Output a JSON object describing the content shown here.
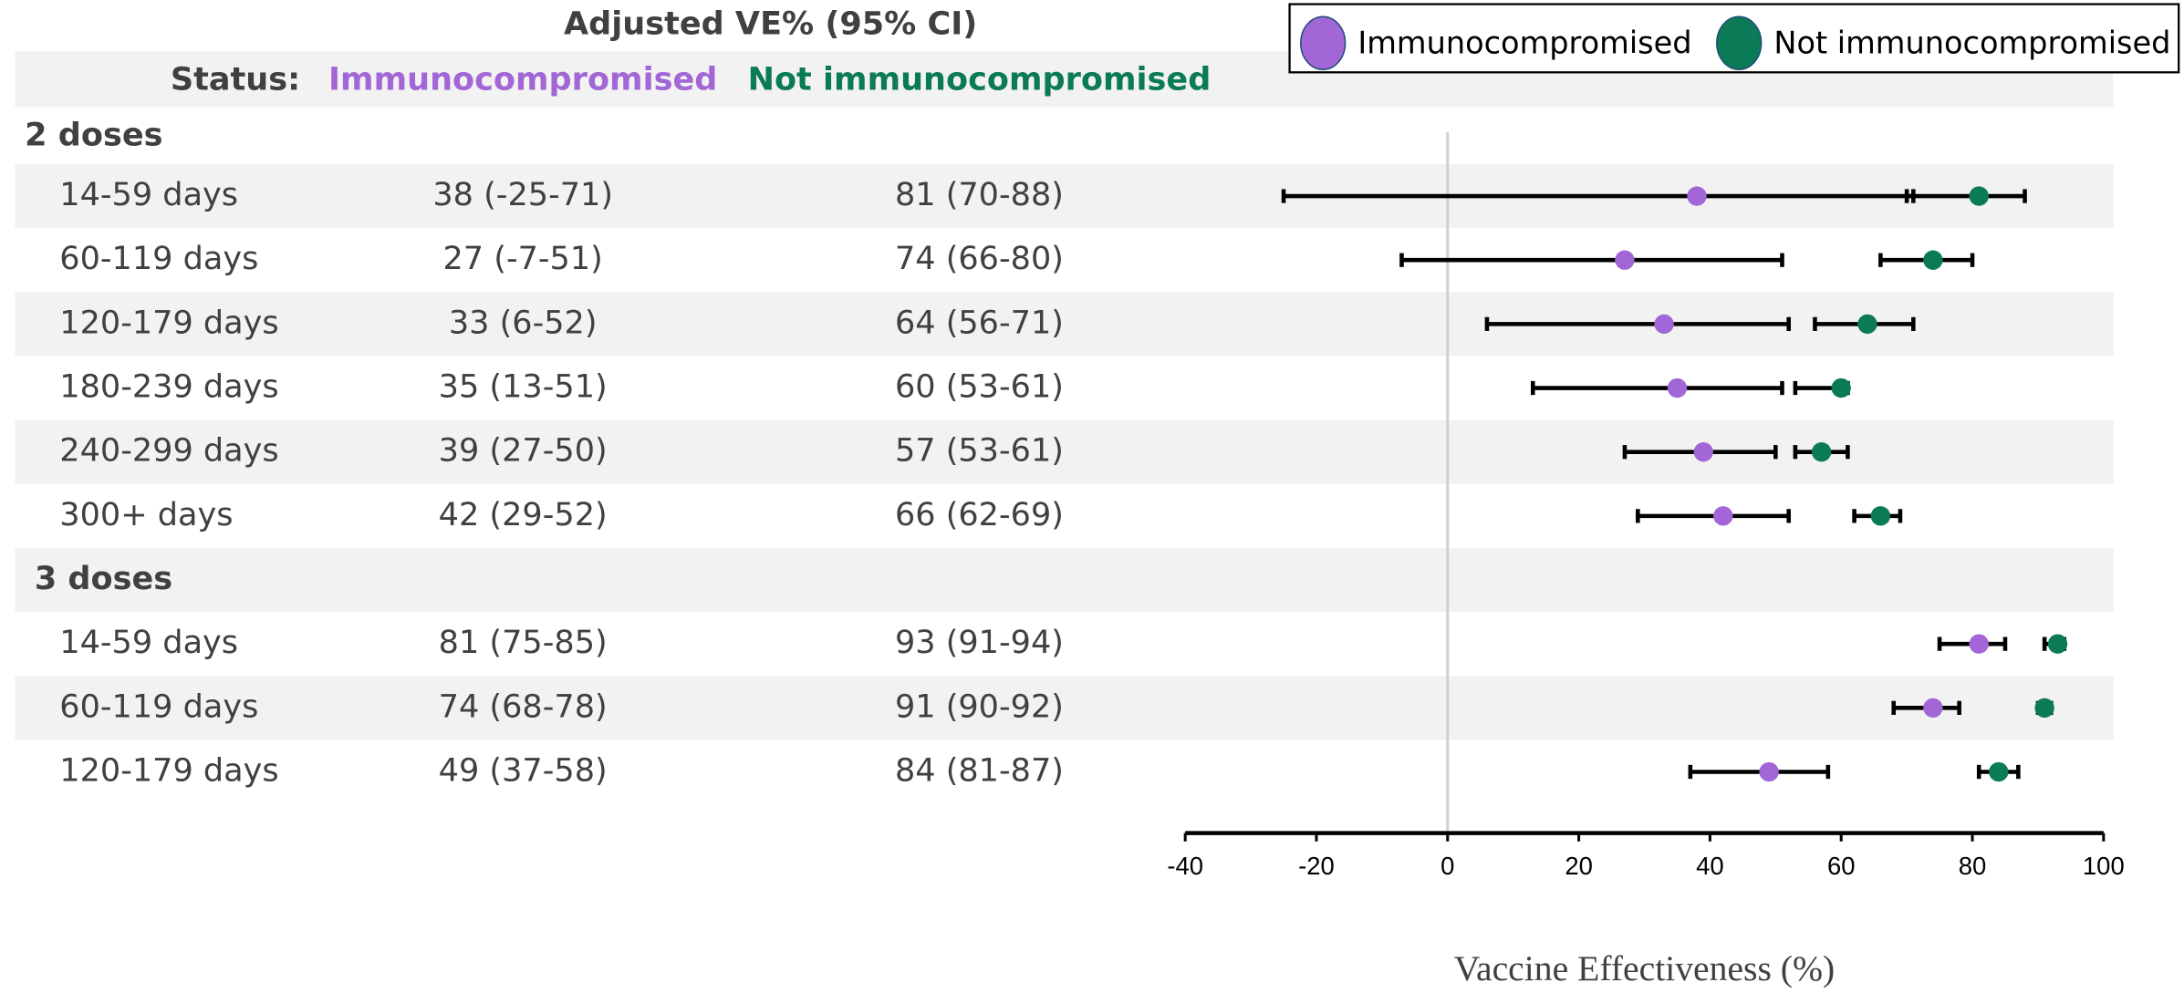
{
  "chart_data": {
    "type": "forest",
    "title": "Adjusted VE% (95% CI)",
    "status_label": "Status:",
    "groups": [
      {
        "name": "2 doses",
        "categories": [
          "14-59 days",
          "60-119 days",
          "120-179 days",
          "180-239 days",
          "240-299 days",
          "300+ days"
        ]
      },
      {
        "name": "3 doses",
        "categories": [
          "14-59 days",
          "60-119 days",
          "120-179 days"
        ]
      }
    ],
    "series": [
      {
        "name": "Immunocompromised",
        "color": "#a366d6",
        "values": [
          38,
          27,
          33,
          35,
          39,
          42,
          81,
          74,
          49
        ],
        "lower": [
          -25,
          -7,
          6,
          13,
          27,
          29,
          75,
          68,
          37
        ],
        "upper": [
          71,
          51,
          52,
          51,
          50,
          52,
          85,
          78,
          58
        ],
        "value_labels": [
          "38 (-25-71)",
          "27 (-7-51)",
          "33 (6-52)",
          "35 (13-51)",
          "39 (27-50)",
          "42 (29-52)",
          "81 (75-85)",
          "74 (68-78)",
          "49 (37-58)"
        ]
      },
      {
        "name": "Not immunocompromised",
        "color": "#0b7a56",
        "values": [
          81,
          74,
          64,
          60,
          57,
          66,
          93,
          91,
          84
        ],
        "lower": [
          70,
          66,
          56,
          53,
          53,
          62,
          91,
          90,
          81
        ],
        "upper": [
          88,
          80,
          71,
          61,
          61,
          69,
          94,
          92,
          87
        ],
        "value_labels": [
          "81 (70-88)",
          "74 (66-80)",
          "64 (56-71)",
          "60 (53-61)",
          "57 (53-61)",
          "66 (62-69)",
          "93 (91-94)",
          "91 (90-92)",
          "84 (81-87)"
        ]
      }
    ],
    "xlim": [
      -40,
      100
    ],
    "xticks": [
      -40,
      -20,
      0,
      20,
      40,
      60,
      80,
      100
    ],
    "xlabel": "Vaccine Effectiveness (%)",
    "reference_line": 0,
    "legend": "top-right"
  }
}
